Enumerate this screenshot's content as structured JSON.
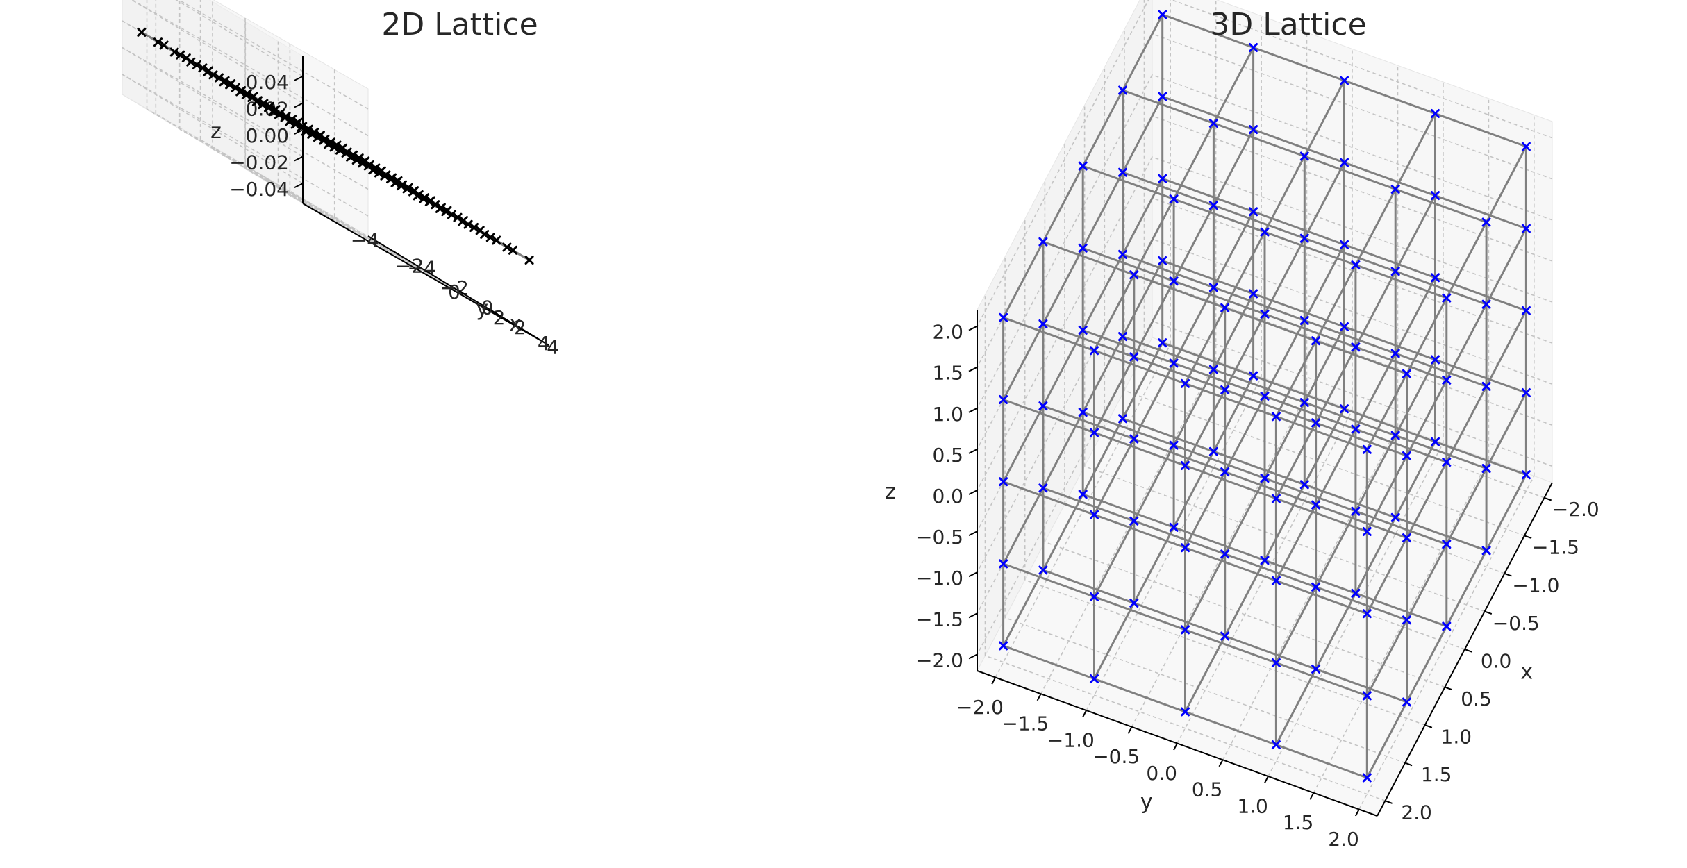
{
  "chart_data": [
    {
      "type": "scatter",
      "subtype": "3d-lattice-wireframe",
      "title": "2D Lattice",
      "xlabel": "x",
      "ylabel": "y",
      "zlabel": "z",
      "xlim": [
        -5.5,
        5.5
      ],
      "ylim": [
        -5.5,
        5.5
      ],
      "zlim": [
        -0.055,
        0.055
      ],
      "x_ticks": [
        -4,
        -2,
        0,
        2,
        4
      ],
      "y_ticks": [
        -4,
        -2,
        0,
        2,
        4
      ],
      "z_ticks": [
        -0.04,
        -0.02,
        0.0,
        0.02,
        0.04
      ],
      "x_tick_labels": [
        "−4",
        "−2",
        "0",
        "2",
        "4"
      ],
      "y_tick_labels": [
        "−4",
        "−2",
        "0",
        "2",
        "4"
      ],
      "z_tick_labels": [
        "−0.04",
        "−0.02",
        "0.00",
        "0.02",
        "0.04"
      ],
      "lattice": {
        "x": [
          -5,
          -4,
          -3,
          -2,
          -1,
          0,
          1,
          2,
          3,
          4,
          5
        ],
        "y": [
          -5,
          -4,
          -3,
          -2,
          -1,
          0,
          1,
          2,
          3,
          4,
          5
        ],
        "z": [
          0
        ]
      },
      "point_marker": "x",
      "point_color": "#000000",
      "line_color": "#808080",
      "grid": true
    },
    {
      "type": "scatter",
      "subtype": "3d-lattice-wireframe",
      "title": "3D Lattice",
      "xlabel": "x",
      "ylabel": "y",
      "zlabel": "z",
      "xlim": [
        -2.2,
        2.2
      ],
      "ylim": [
        -2.2,
        2.2
      ],
      "zlim": [
        -2.2,
        2.2
      ],
      "x_ticks": [
        -2.0,
        -1.5,
        -1.0,
        -0.5,
        0.0,
        0.5,
        1.0,
        1.5,
        2.0
      ],
      "y_ticks": [
        -2.0,
        -1.5,
        -1.0,
        -0.5,
        0.0,
        0.5,
        1.0,
        1.5,
        2.0
      ],
      "z_ticks": [
        -2.0,
        -1.5,
        -1.0,
        -0.5,
        0.0,
        0.5,
        1.0,
        1.5,
        2.0
      ],
      "x_tick_labels": [
        "−2.0",
        "−1.5",
        "−1.0",
        "−0.5",
        "0.0",
        "0.5",
        "1.0",
        "1.5",
        "2.0"
      ],
      "y_tick_labels": [
        "−2.0",
        "−1.5",
        "−1.0",
        "−0.5",
        "0.0",
        "0.5",
        "1.0",
        "1.5",
        "2.0"
      ],
      "z_tick_labels": [
        "−2.0",
        "−1.5",
        "−1.0",
        "−0.5",
        "0.0",
        "0.5",
        "1.0",
        "1.5",
        "2.0"
      ],
      "lattice": {
        "x": [
          -2,
          -1,
          0,
          1,
          2
        ],
        "y": [
          -2,
          -1,
          0,
          1,
          2
        ],
        "z": [
          -2,
          -1,
          0,
          1,
          2
        ]
      },
      "point_marker": "x",
      "point_color": "#0000ff",
      "line_color": "#808080",
      "grid": true
    }
  ],
  "colors": {
    "pane_back": "#eaeaea",
    "pane_side": "#f0f0f0",
    "pane_floor": "#f5f5f5",
    "grid": "#c4c4c4",
    "axis": "#000000",
    "text": "#262626"
  }
}
